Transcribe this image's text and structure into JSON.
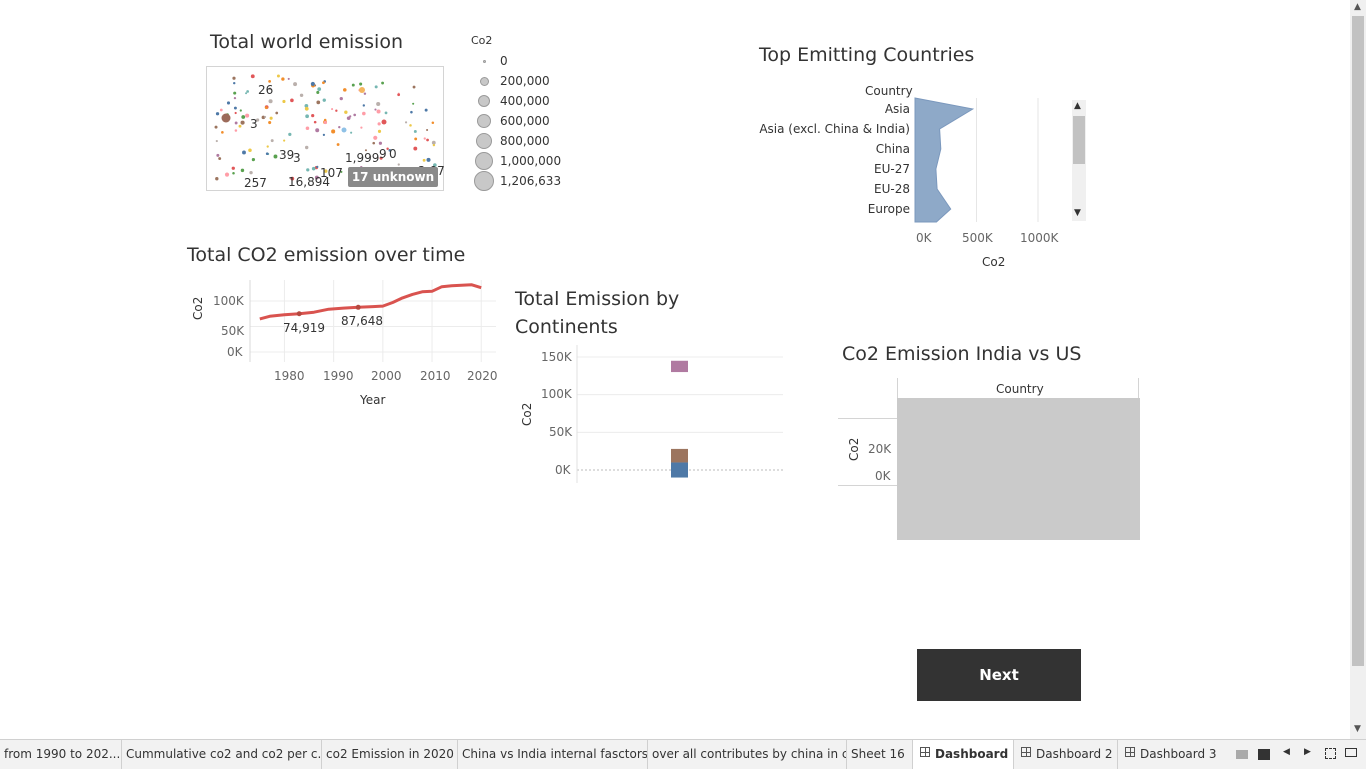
{
  "map": {
    "title": "Total world emission",
    "legend_title": "Co2",
    "legend_values": [
      "0",
      "200,000",
      "400,000",
      "600,000",
      "800,000",
      "1,000,000",
      "1,206,633"
    ],
    "labels": [
      "26",
      "3",
      "39",
      "3",
      "1,999",
      "9",
      "0",
      "107",
      "257",
      "16,894",
      "2,07"
    ],
    "unknown_badge": "17 unknown"
  },
  "top_countries": {
    "title": "Top Emitting Countries",
    "column_header": "Country",
    "countries": [
      "Asia",
      "Asia (excl. China & India)",
      "China",
      "EU-27",
      "EU-28",
      "Europe"
    ],
    "x_ticks": [
      "0K",
      "500K",
      "1000K"
    ],
    "x_label": "Co2"
  },
  "line_chart": {
    "title": "Total CO2 emission over time",
    "y_label": "Co2",
    "x_label": "Year",
    "y_ticks": [
      "100K",
      "50K",
      "0K"
    ],
    "x_ticks": [
      "1980",
      "1990",
      "2000",
      "2010",
      "2020"
    ],
    "annotations": [
      "74,919",
      "87,648"
    ]
  },
  "continents": {
    "title": "Total Emission by Continents",
    "y_label": "Co2",
    "y_ticks": [
      "150K",
      "100K",
      "50K",
      "0K"
    ]
  },
  "india_us": {
    "title": "Co2 Emission India vs US",
    "column_header": "Country",
    "y_label": "Co2",
    "y_ticks": [
      "20K",
      "0K"
    ]
  },
  "next_button": "Next",
  "tabs": [
    "from 1990 to 202...",
    "Cummulative co2 and co2 per c...",
    "co2 Emission in 2020",
    "China vs India internal fasctors",
    "over all contributes by china in c...",
    "Sheet 16",
    "Dashboard 1",
    "Dashboard 2",
    "Dashboard 3"
  ],
  "active_tab": "Dashboard 1",
  "chart_data": [
    {
      "type": "line",
      "title": "Total CO2 emission over time",
      "xlabel": "Year",
      "ylabel": "Co2",
      "x": [
        1975,
        1977,
        1980,
        1983,
        1986,
        1989,
        1992,
        1995,
        1998,
        2000,
        2002,
        2004,
        2006,
        2008,
        2010,
        2012,
        2014,
        2016,
        2018,
        2020
      ],
      "values": [
        65000,
        70000,
        73000,
        74919,
        78000,
        84000,
        86000,
        87648,
        89000,
        90000,
        97000,
        106000,
        113000,
        118000,
        119000,
        128000,
        130000,
        131000,
        132000,
        126000
      ],
      "xlim": [
        1973,
        2023
      ],
      "ylim": [
        0,
        130000
      ],
      "color": "#d9534f"
    },
    {
      "type": "area",
      "title": "Top Emitting Countries",
      "xlabel": "Co2",
      "ylabel": "Country",
      "categories": [
        "Asia",
        "Asia (excl. China & India)",
        "China",
        "EU-27",
        "EU-28",
        "Europe"
      ],
      "values": [
        470000,
        200000,
        210000,
        170000,
        180000,
        290000
      ],
      "xlim": [
        0,
        1200000
      ],
      "color": "#8ea9c8"
    },
    {
      "type": "bar",
      "title": "Total Emission by Continents",
      "ylabel": "Co2",
      "ylim": [
        -15000,
        160000
      ],
      "segments": [
        {
          "start": -10000,
          "end": 10000,
          "color": "#4e79a7"
        },
        {
          "start": 10000,
          "end": 28000,
          "color": "#9c755f"
        },
        {
          "start": 130000,
          "end": 145000,
          "color": "#b07aa1"
        }
      ]
    }
  ]
}
